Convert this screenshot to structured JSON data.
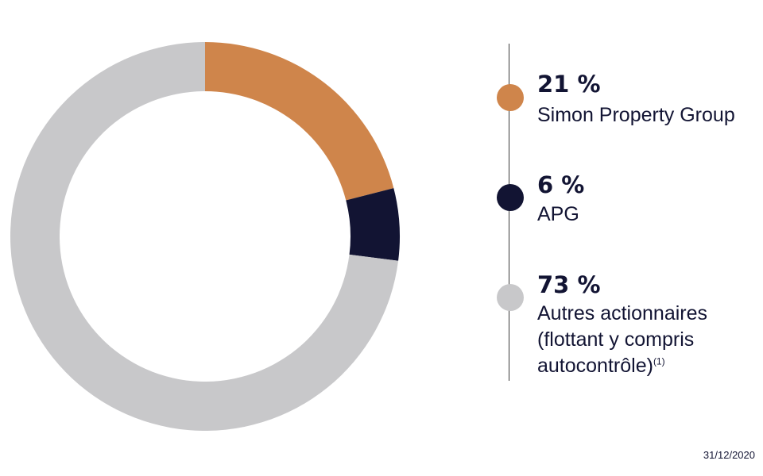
{
  "chart_data": {
    "type": "pie",
    "categories": [
      "Simon Property Group",
      "APG",
      "Autres actionnaires (flottant y compris autocontrôle)(1)"
    ],
    "values": [
      21,
      6,
      73
    ],
    "unit": "%",
    "colors": [
      "#CF854B",
      "#121433",
      "#C8C8CA"
    ],
    "style": "donut",
    "legend_position": "right"
  },
  "legend": [
    {
      "pct": "21 %",
      "lines": [
        "Simon Property Group"
      ],
      "color": "#CF854B"
    },
    {
      "pct": "6 %",
      "lines": [
        "APG"
      ],
      "color": "#121433"
    },
    {
      "pct": "73 %",
      "lines": [
        "Autres actionnaires",
        "(flottant y compris",
        "autocontrôle)"
      ],
      "footnote": "(1)",
      "color": "#C8C8CA"
    }
  ],
  "date": "31/12/2020"
}
